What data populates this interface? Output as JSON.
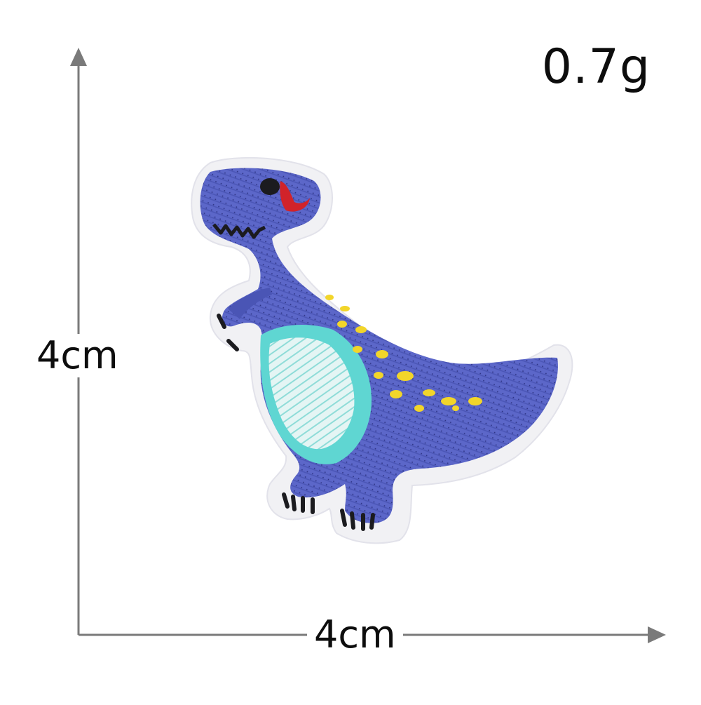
{
  "product": {
    "weight": "0.7g",
    "height": "4cm",
    "width": "4cm"
  },
  "colors": {
    "background": "#ffffff",
    "axis": "#7a7a7a",
    "text": "#0d0d0d",
    "felt_border": "#f1f1f4",
    "dino_body": "#5c67c9",
    "dino_belly": "#5fd6d2",
    "dino_belly_inner": "#e4f5f4",
    "dino_spots": "#f2d52a",
    "dino_eye": "#1b1b1f",
    "dino_mouth": "#d1232a",
    "dino_claws": "#1b1b1f"
  },
  "icons": {
    "patch": "dinosaur-embroidered-patch-icon",
    "arrow": "arrow-head-icon"
  }
}
